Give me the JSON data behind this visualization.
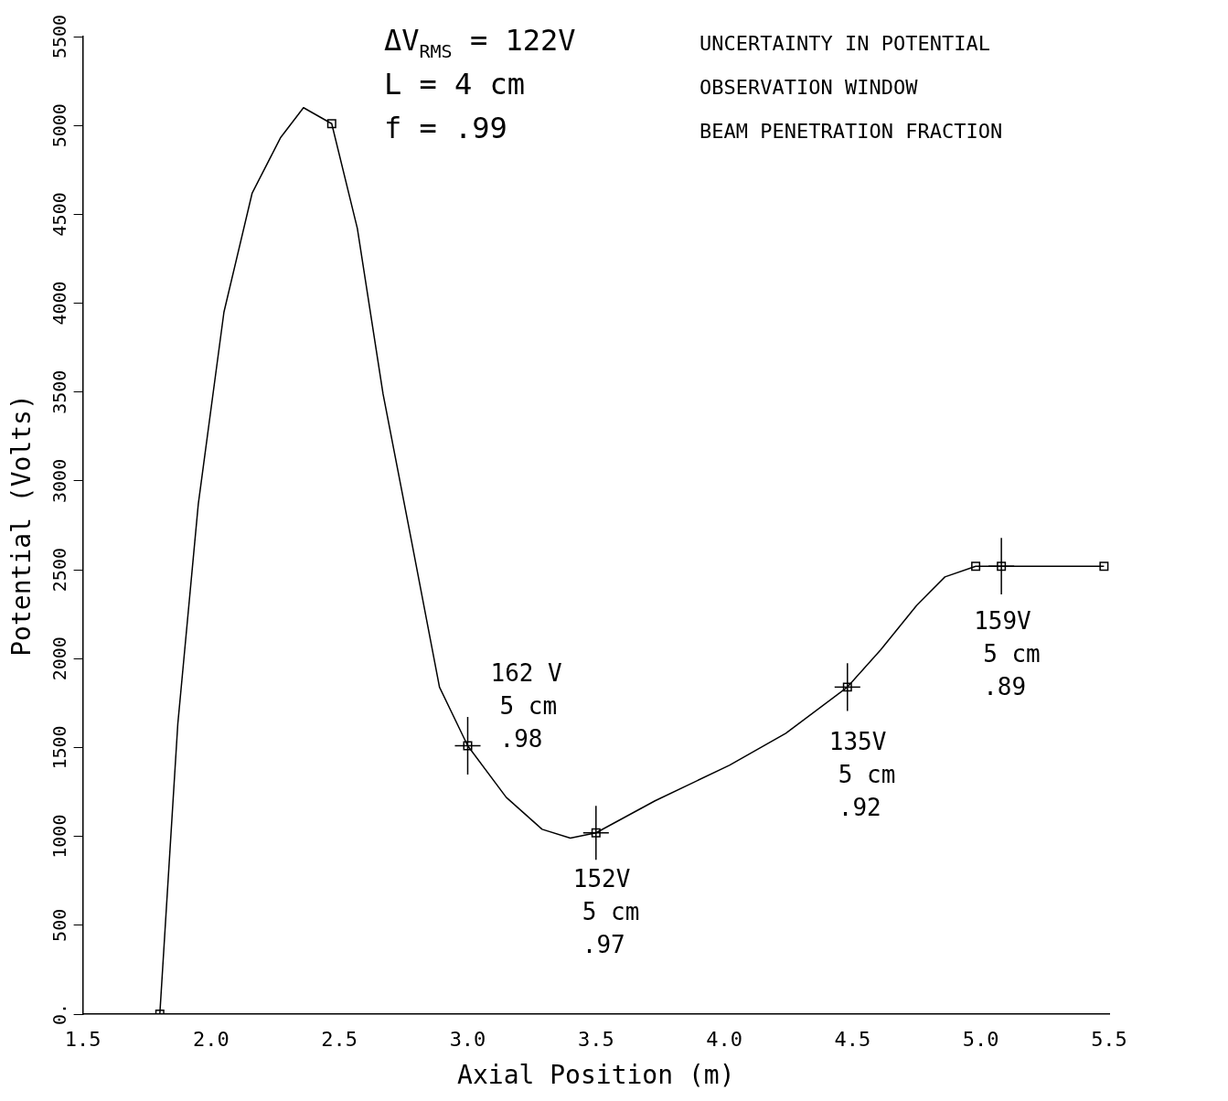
{
  "chart_data": {
    "type": "line",
    "xlabel": "Axial Position (m)",
    "ylabel": "Potential (Volts)",
    "xlim": [
      1.5,
      5.5
    ],
    "xticks": [
      1.5,
      {
        "value": 2,
        "label": "2.0"
      },
      2.5,
      {
        "value": 3,
        "label": "3.0"
      },
      3.5,
      {
        "value": 4,
        "label": "4.0"
      },
      4.5,
      {
        "value": 5,
        "label": "5.0"
      },
      5.5
    ],
    "ylim": [
      0,
      5500
    ],
    "yticks": [
      {
        "value": 0,
        "label": "0."
      },
      500,
      1000,
      1500,
      2000,
      2500,
      3000,
      3500,
      4000,
      4500,
      5000,
      5500
    ],
    "grid": false,
    "legend": false,
    "series": [
      {
        "type": "line",
        "color": "#000000",
        "marker": "none",
        "x": [
          1.8,
          1.87,
          1.95,
          2.05,
          2.16,
          2.27,
          2.36,
          2.47,
          2.57,
          2.67,
          2.78,
          2.89,
          3.0,
          3.15,
          3.29,
          3.4,
          3.5,
          3.73,
          4.02,
          4.24,
          4.48,
          4.61,
          4.75,
          4.86,
          4.98,
          5.08,
          5.48
        ],
        "values": [
          0,
          1630,
          2870,
          3950,
          4620,
          4930,
          5100,
          5010,
          4420,
          3490,
          2670,
          1840,
          1510,
          1220,
          1040,
          990,
          1020,
          1200,
          1400,
          1580,
          1840,
          2050,
          2300,
          2460,
          2520,
          2520,
          2520
        ]
      },
      {
        "type": "scatter",
        "color": "#000000",
        "marker": "square",
        "x": [
          1.8,
          2.47,
          3.0,
          3.5,
          4.48,
          4.98,
          5.08,
          5.48
        ],
        "values": [
          0,
          5010,
          1510,
          1020,
          1840,
          2520,
          2520,
          2520
        ],
        "errors": [
          null,
          null,
          162,
          152,
          135,
          null,
          159,
          null
        ],
        "xerrors": [
          null,
          null,
          0.05,
          0.05,
          0.05,
          null,
          0.05,
          null
        ]
      }
    ],
    "annotations": [
      "ΔV$_{RMS}$ = 122V",
      "L = 4 cm",
      "f = .99",
      "UNCERTAINTY IN POTENTIAL",
      "OBSERVATION WINDOW",
      "BEAM PENETRATION FRACTION",
      {
        "text": "162 V\n5 cm\n.98",
        "x": 3.0,
        "y": 1510
      },
      {
        "text": "152V\n5 cm\n.97",
        "x": 3.5,
        "y": 1020
      },
      {
        "text": "135V\n5 cm\n.92",
        "x": 4.48,
        "y": 1840
      },
      {
        "text": "159V\n5 cm\n.89",
        "x": 5.08,
        "y": 2520
      }
    ]
  }
}
